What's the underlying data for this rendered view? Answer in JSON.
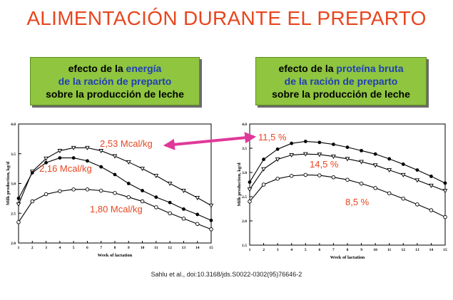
{
  "title": "ALIMENTACIÓN DURANTE EL PREPARTO",
  "boxes": {
    "left": {
      "line1_a": "efecto de la ",
      "line1_b": "energía",
      "line2": "de la ración de preparto",
      "line3": "sobre la producción de leche"
    },
    "right": {
      "line1_a": "efecto de la ",
      "line1_b": "proteína bruta",
      "line2": "de la ración de preparto",
      "line3": "sobre la producción de leche"
    }
  },
  "citation": "Sahlu et al., doi:10.3168/jds.S0022-0302(95)76646-2",
  "colors": {
    "title": "#e8461e",
    "box_bg": "#8fc53f",
    "highlight": "#1f3fb5",
    "annotation": "#e8461e",
    "arrow": "#e0399a"
  },
  "chart_data": [
    {
      "type": "line",
      "xlabel": "Week of lactation",
      "ylabel": "Milk production, kg/d",
      "x": [
        1,
        2,
        3,
        4,
        5,
        6,
        7,
        8,
        9,
        10,
        11,
        12,
        13,
        14,
        15
      ],
      "xlim": [
        1,
        15
      ],
      "ylim": [
        2.0,
        4.0
      ],
      "yticks": [
        "2.0",
        "2.5",
        "3.0",
        "3.5",
        "4.0"
      ],
      "xticks": [
        "1",
        "2",
        "3",
        "4",
        "5",
        "6",
        "7",
        "8",
        "9",
        "10",
        "11",
        "12",
        "13",
        "14",
        "15"
      ],
      "series": [
        {
          "name": "2,53 Mcal/kg",
          "marker": "triangle-down",
          "values": [
            2.65,
            3.2,
            3.42,
            3.55,
            3.6,
            3.6,
            3.55,
            3.46,
            3.36,
            3.25,
            3.13,
            3.0,
            2.88,
            2.76,
            2.63
          ]
        },
        {
          "name": "2,16 Mcal/kg",
          "marker": "filled-circle",
          "values": [
            2.75,
            3.18,
            3.35,
            3.43,
            3.43,
            3.38,
            3.28,
            3.15,
            3.0,
            2.88,
            2.77,
            2.68,
            2.57,
            2.48,
            2.38
          ]
        },
        {
          "name": "1,80 Mcal/kg",
          "marker": "open-circle",
          "values": [
            2.35,
            2.7,
            2.82,
            2.87,
            2.9,
            2.9,
            2.88,
            2.84,
            2.77,
            2.7,
            2.6,
            2.5,
            2.41,
            2.32,
            2.23
          ]
        }
      ],
      "annotations": [
        "2,53 Mcal/kg",
        "2,16 Mcal/kg",
        "1,80 Mcal/kg"
      ]
    },
    {
      "type": "line",
      "xlabel": "Week of lactation",
      "ylabel": "Milk production, kg/d",
      "x": [
        1,
        2,
        3,
        4,
        5,
        6,
        7,
        8,
        9,
        10,
        11,
        12,
        13,
        14,
        15
      ],
      "xlim": [
        1,
        15
      ],
      "ylim": [
        1.5,
        4.0
      ],
      "yticks": [
        "1.5",
        "2.0",
        "2.5",
        "3.0",
        "3.5",
        "4.0"
      ],
      "xticks": [
        "1",
        "2",
        "3",
        "4",
        "5",
        "6",
        "7",
        "8",
        "9",
        "10",
        "11",
        "12",
        "13",
        "14",
        "15"
      ],
      "series": [
        {
          "name": "11,5 %",
          "marker": "filled-circle",
          "values": [
            2.8,
            3.27,
            3.48,
            3.6,
            3.64,
            3.62,
            3.58,
            3.52,
            3.45,
            3.38,
            3.28,
            3.17,
            3.05,
            2.92,
            2.78
          ]
        },
        {
          "name": "14,5 %",
          "marker": "triangle-down",
          "values": [
            2.65,
            3.07,
            3.27,
            3.36,
            3.38,
            3.37,
            3.33,
            3.28,
            3.22,
            3.15,
            3.05,
            2.95,
            2.84,
            2.73,
            2.62
          ]
        },
        {
          "name": "8,5 %",
          "marker": "open-circle",
          "values": [
            2.4,
            2.75,
            2.87,
            2.93,
            2.95,
            2.94,
            2.9,
            2.85,
            2.77,
            2.68,
            2.57,
            2.46,
            2.34,
            2.22,
            2.08
          ]
        }
      ],
      "annotations": [
        "11,5 %",
        "14,5 %",
        "8,5 %"
      ]
    }
  ]
}
